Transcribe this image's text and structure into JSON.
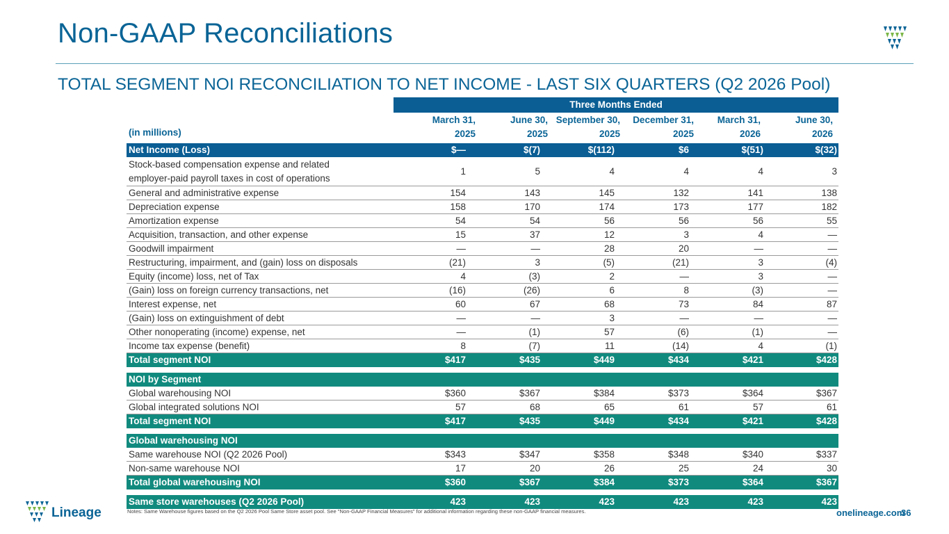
{
  "page": {
    "title": "Non-GAAP Reconciliations",
    "subtitle": "TOTAL SEGMENT NOI RECONCILIATION TO NET INCOME - LAST SIX QUARTERS (Q2 2026 Pool)",
    "units": "(in millions)",
    "band": "Three Months Ended",
    "columns": [
      {
        "l1": "March 31,",
        "l2": "2025"
      },
      {
        "l1": "June 30,",
        "l2": "2025"
      },
      {
        "l1": "September 30,",
        "l2": "2025"
      },
      {
        "l1": "December 31,",
        "l2": "2025"
      },
      {
        "l1": "March 31,",
        "l2": "2026"
      },
      {
        "l1": "June 30,",
        "l2": "2026"
      }
    ],
    "brand": "Lineage",
    "note": "Notes: Same Warehouse figures based on the Q2 2026 Pool Same Store asset pool. See \"Non-GAAP Financial Measures\" for additional information regarding these non-GAAP financial measures.",
    "url": "onelineage.com",
    "page_number": "36"
  },
  "rows": [
    {
      "label": "Net Income (Loss)",
      "values": [
        "$—",
        "$(7)",
        "$(112)",
        "$6",
        "$(51)",
        "$(32)"
      ]
    },
    {
      "label": "Stock-based compensation expense and related employer-paid payroll taxes in cost of operations",
      "values": [
        "1",
        "5",
        "4",
        "4",
        "4",
        "3"
      ]
    },
    {
      "label": "General and administrative expense",
      "values": [
        "154",
        "143",
        "145",
        "132",
        "141",
        "138"
      ]
    },
    {
      "label": "Depreciation expense",
      "values": [
        "158",
        "170",
        "174",
        "173",
        "177",
        "182"
      ]
    },
    {
      "label": "Amortization expense",
      "values": [
        "54",
        "54",
        "56",
        "56",
        "56",
        "55"
      ]
    },
    {
      "label": "Acquisition, transaction, and other expense",
      "values": [
        "15",
        "37",
        "12",
        "3",
        "4",
        "—"
      ]
    },
    {
      "label": "Goodwill impairment",
      "values": [
        "—",
        "—",
        "28",
        "20",
        "—",
        "—"
      ]
    },
    {
      "label": "Restructuring, impairment, and (gain) loss on disposals",
      "values": [
        "(21)",
        "3",
        "(5)",
        "(21)",
        "3",
        "(4)"
      ]
    },
    {
      "label": "Equity (income) loss, net of Tax",
      "values": [
        "4",
        "(3)",
        "2",
        "—",
        "3",
        "—"
      ]
    },
    {
      "label": "(Gain) loss on foreign currency transactions, net",
      "values": [
        "(16)",
        "(26)",
        "6",
        "8",
        "(3)",
        "—"
      ]
    },
    {
      "label": "Interest expense, net",
      "values": [
        "60",
        "67",
        "68",
        "73",
        "84",
        "87"
      ]
    },
    {
      "label": "(Gain) loss on extinguishment of debt",
      "values": [
        "—",
        "—",
        "3",
        "—",
        "—",
        "—"
      ]
    },
    {
      "label": "Other nonoperating (income) expense, net",
      "values": [
        "—",
        "(1)",
        "57",
        "(6)",
        "(1)",
        "—"
      ]
    },
    {
      "label": "Income tax expense (benefit)",
      "values": [
        "8",
        "(7)",
        "11",
        "(14)",
        "4",
        "(1)"
      ]
    },
    {
      "label": "Total segment NOI",
      "values": [
        "$417",
        "$435",
        "$449",
        "$434",
        "$421",
        "$428"
      ]
    },
    {
      "label": "NOI by Segment",
      "values": []
    },
    {
      "label": "Global warehousing NOI",
      "values": [
        "$360",
        "$367",
        "$384",
        "$373",
        "$364",
        "$367"
      ]
    },
    {
      "label": "Global integrated solutions NOI",
      "values": [
        "57",
        "68",
        "65",
        "61",
        "57",
        "61"
      ]
    },
    {
      "label": "Total segment NOI",
      "values": [
        "$417",
        "$435",
        "$449",
        "$434",
        "$421",
        "$428"
      ]
    },
    {
      "label": "Global warehousing NOI",
      "values": []
    },
    {
      "label": "Same warehouse NOI (Q2 2026 Pool)",
      "values": [
        "$343",
        "$347",
        "$358",
        "$348",
        "$340",
        "$337"
      ]
    },
    {
      "label": "Non-same warehouse NOI",
      "values": [
        "17",
        "20",
        "26",
        "25",
        "24",
        "30"
      ]
    },
    {
      "label": "Total global warehousing NOI",
      "values": [
        "$360",
        "$367",
        "$384",
        "$373",
        "$364",
        "$367"
      ]
    },
    {
      "label": "Same store warehouses (Q2 2026 Pool)",
      "values": [
        "423",
        "423",
        "423",
        "423",
        "423",
        "423"
      ]
    }
  ],
  "colors": {
    "title": "#0a6496",
    "header_bar": "#0a5e94",
    "total_bar": "#118a7e"
  }
}
